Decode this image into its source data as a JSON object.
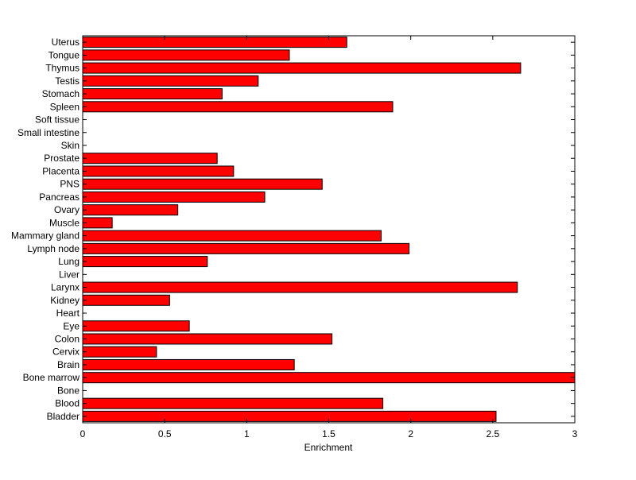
{
  "chart_data": {
    "type": "bar",
    "orientation": "horizontal",
    "title": "",
    "xlabel": "Enrichment",
    "ylabel": "",
    "xlim": [
      0,
      3
    ],
    "xticks": [
      "0",
      "0.5",
      "1",
      "1.5",
      "2",
      "2.5",
      "3"
    ],
    "xtick_values": [
      0,
      0.5,
      1,
      1.5,
      2,
      2.5,
      3
    ],
    "grid": false,
    "legend": "none",
    "categories": [
      "Bladder",
      "Blood",
      "Bone",
      "Bone marrow",
      "Brain",
      "Cervix",
      "Colon",
      "Eye",
      "Heart",
      "Kidney",
      "Larynx",
      "Liver",
      "Lung",
      "Lymph node",
      "Mammary gland",
      "Muscle",
      "Ovary",
      "Pancreas",
      "PNS",
      "Placenta",
      "Prostate",
      "Skin",
      "Small intestine",
      "Soft tissue",
      "Spleen",
      "Stomach",
      "Testis",
      "Thymus",
      "Tongue",
      "Uterus"
    ],
    "values": [
      2.52,
      1.83,
      0,
      3.0,
      1.29,
      0.45,
      1.52,
      0.65,
      0,
      0.53,
      2.65,
      0,
      0.76,
      1.99,
      1.82,
      0.18,
      0.58,
      1.11,
      1.46,
      0.92,
      0.82,
      0,
      0,
      0,
      1.89,
      0.85,
      1.07,
      2.67,
      1.26,
      1.61
    ],
    "colors": {
      "bar_fill": "#ff0000",
      "bar_stroke": "#000000",
      "axis": "#000000",
      "background": "#ffffff"
    }
  }
}
